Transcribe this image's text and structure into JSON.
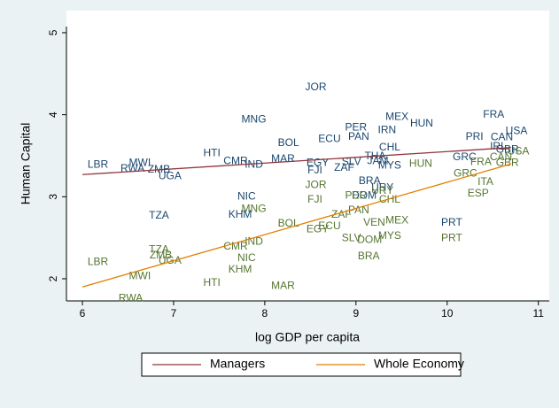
{
  "chart_data": {
    "type": "scatter",
    "xlabel": "log GDP per capita",
    "ylabel": "Human Capital",
    "xlim": [
      5.825,
      11.1
    ],
    "ylim": [
      1.73,
      5.075
    ],
    "xticks": [
      6,
      7,
      8,
      9,
      10,
      11
    ],
    "yticks": [
      2,
      3,
      4,
      5
    ],
    "legend": "bottom",
    "series": [
      {
        "name": "Managers",
        "color": "#90353b",
        "label_color": "#1a476f",
        "labels": [
          "LBR",
          "MWI",
          "RWA",
          "ZMB",
          "UGA",
          "HTI",
          "CMR",
          "IND",
          "MNG",
          "BOL",
          "MAR",
          "JOR",
          "ECU",
          "PAN",
          "PER",
          "IRN",
          "MEX",
          "HUN",
          "CHL",
          "EGY",
          "FJI",
          "SLV",
          "ZAF",
          "THA",
          "JAM",
          "MYS",
          "FRA",
          "USA",
          "CAN",
          "PRI",
          "GRC",
          "IRL",
          "GBR",
          "NIC",
          "TZA",
          "KHM",
          "BRA",
          "PRT",
          "DOM",
          "URY"
        ],
        "x": [
          6.17,
          6.63,
          6.55,
          6.84,
          6.96,
          7.42,
          7.68,
          7.88,
          7.88,
          8.26,
          8.2,
          8.56,
          8.71,
          9.03,
          9.0,
          9.34,
          9.45,
          9.72,
          9.37,
          8.58,
          8.55,
          8.95,
          8.87,
          9.21,
          9.24,
          9.37,
          10.51,
          10.76,
          10.6,
          10.3,
          10.19,
          10.56,
          10.66,
          7.8,
          6.84,
          7.73,
          9.15,
          10.05,
          9.09,
          9.29
        ],
        "values": [
          3.39,
          3.41,
          3.34,
          3.33,
          3.25,
          3.53,
          3.43,
          3.39,
          3.94,
          3.65,
          3.46,
          4.33,
          3.7,
          3.73,
          3.84,
          3.81,
          3.97,
          3.89,
          3.6,
          3.41,
          3.32,
          3.42,
          3.35,
          3.49,
          3.43,
          3.38,
          4.0,
          3.8,
          3.72,
          3.73,
          3.48,
          3.61,
          3.57,
          3.0,
          2.77,
          2.78,
          3.19,
          2.68,
          3.01,
          3.11
        ],
        "fit_x": [
          6,
          10.7
        ],
        "fit_values": [
          3.27,
          3.6
        ]
      },
      {
        "name": "Whole Economy",
        "color": "#e37e00",
        "label_color": "#55752f",
        "labels": [
          "HUN",
          "JOR",
          "FJI",
          "PER",
          "URY",
          "CHL",
          "PAN",
          "ZAF",
          "BOL",
          "EGY",
          "ECU",
          "VEN",
          "MEX",
          "MYS",
          "SLV",
          "DOM",
          "BRA",
          "MNG",
          "CMR",
          "IND",
          "NIC",
          "KHM",
          "HTI",
          "MAR",
          "LBR",
          "MWI",
          "RWA",
          "TZA",
          "ZMB",
          "UGA",
          "PRT",
          "ESP",
          "ITA",
          "GRC",
          "FRA",
          "USA",
          "CAN",
          "GBR"
        ],
        "x": [
          9.71,
          8.56,
          8.55,
          9.0,
          9.29,
          9.37,
          9.03,
          8.84,
          8.26,
          8.58,
          8.71,
          9.2,
          9.45,
          9.37,
          8.95,
          9.15,
          9.14,
          7.88,
          7.68,
          7.88,
          7.8,
          7.73,
          7.42,
          8.2,
          6.17,
          6.63,
          6.53,
          6.84,
          6.86,
          6.96,
          10.05,
          10.34,
          10.42,
          10.2,
          10.37,
          10.78,
          10.59,
          10.66
        ],
        "values": [
          3.4,
          3.14,
          2.96,
          3.01,
          3.07,
          2.96,
          2.83,
          2.78,
          2.67,
          2.6,
          2.64,
          2.68,
          2.71,
          2.52,
          2.49,
          2.47,
          2.27,
          2.85,
          2.39,
          2.45,
          2.25,
          2.11,
          1.95,
          1.91,
          2.2,
          2.03,
          1.76,
          2.35,
          2.28,
          2.22,
          2.49,
          3.04,
          3.18,
          3.28,
          3.42,
          3.55,
          3.48,
          3.41
        ],
        "fit_x": [
          6,
          10.7
        ],
        "fit_values": [
          1.9,
          3.4
        ]
      }
    ]
  }
}
